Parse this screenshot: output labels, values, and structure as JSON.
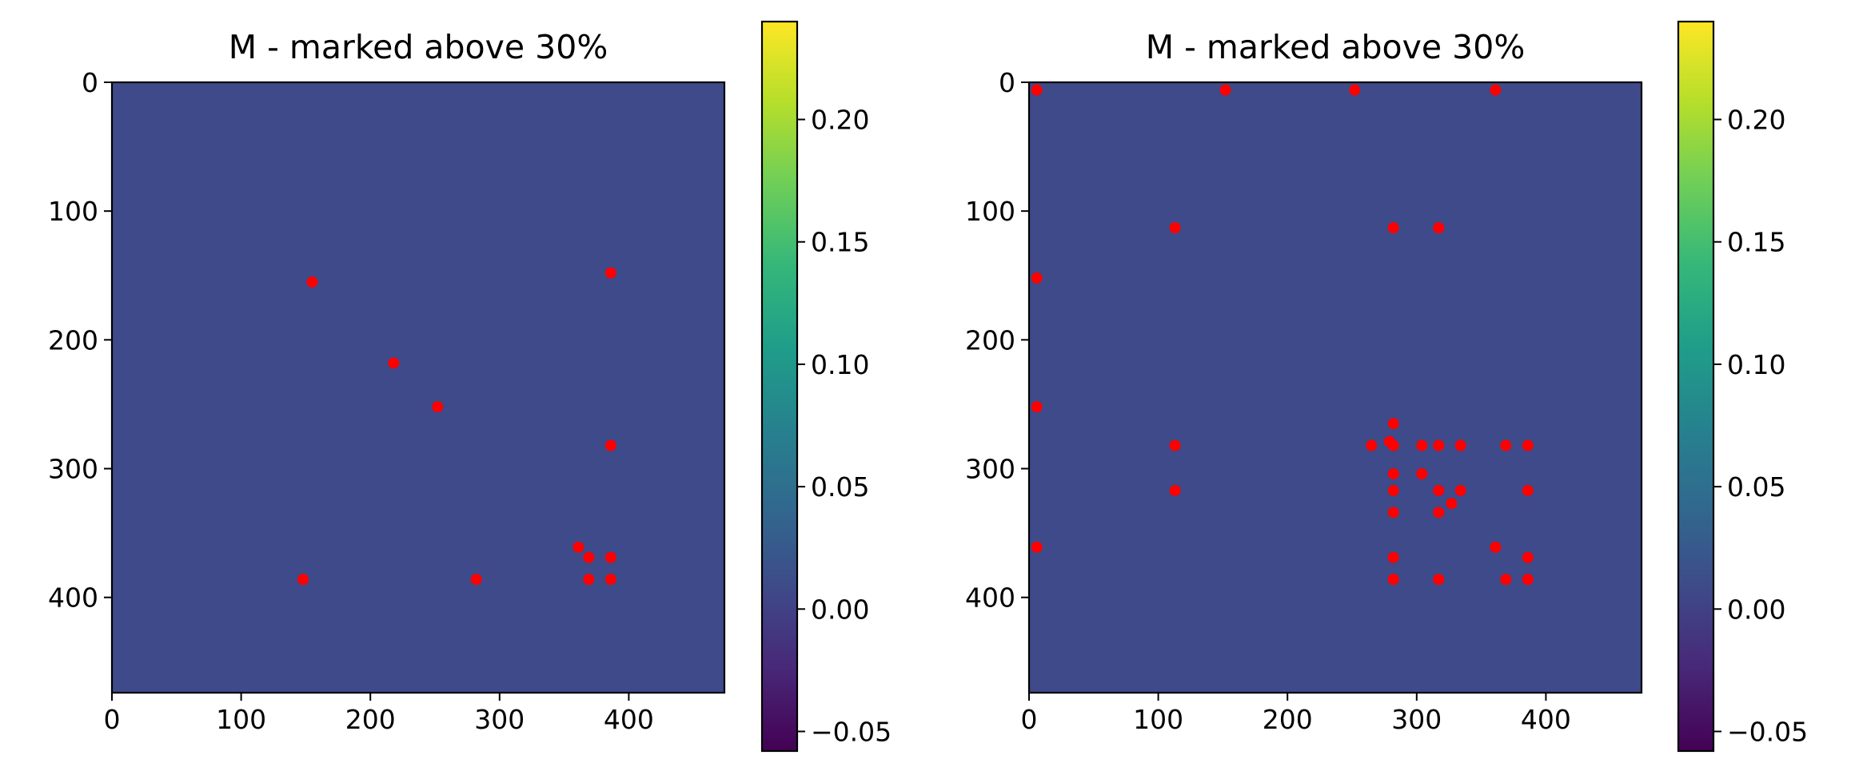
{
  "colors": {
    "background_value": "#3e4a89",
    "marker": "#ff0000",
    "axis": "#000000",
    "colormap": "viridis",
    "colormap_stops": [
      "#440154",
      "#482777",
      "#3e4a89",
      "#31688e",
      "#26828e",
      "#1f9e89",
      "#35b779",
      "#6ece58",
      "#b5de2b",
      "#fde725"
    ]
  },
  "chart_data": [
    {
      "type": "heatmap",
      "title": "M - marked above 30%",
      "xlim": [
        0,
        474
      ],
      "ylim": [
        474,
        0
      ],
      "x_ticks": [
        0,
        100,
        200,
        300,
        400
      ],
      "y_ticks": [
        0,
        100,
        200,
        300,
        400
      ],
      "x_tick_labels": [
        "0",
        "100",
        "200",
        "300",
        "400"
      ],
      "y_tick_labels": [
        "0",
        "100",
        "200",
        "300",
        "400"
      ],
      "y_inverted": true,
      "fill_value": 0.0,
      "colorbar": {
        "range": [
          -0.058,
          0.24
        ],
        "ticks": [
          -0.05,
          0.0,
          0.05,
          0.1,
          0.15,
          0.2
        ],
        "tick_labels": [
          "−0.05",
          "0.00",
          "0.05",
          "0.10",
          "0.15",
          "0.20"
        ]
      },
      "marked_points": [
        {
          "x": 155,
          "y": 155
        },
        {
          "x": 386,
          "y": 148
        },
        {
          "x": 218,
          "y": 218
        },
        {
          "x": 252,
          "y": 252
        },
        {
          "x": 386,
          "y": 282
        },
        {
          "x": 361,
          "y": 361
        },
        {
          "x": 369,
          "y": 369
        },
        {
          "x": 386,
          "y": 369
        },
        {
          "x": 148,
          "y": 386
        },
        {
          "x": 282,
          "y": 386
        },
        {
          "x": 369,
          "y": 386
        },
        {
          "x": 386,
          "y": 386
        }
      ]
    },
    {
      "type": "heatmap",
      "title": "M - marked above 30%",
      "xlim": [
        0,
        474
      ],
      "ylim": [
        474,
        0
      ],
      "x_ticks": [
        0,
        100,
        200,
        300,
        400
      ],
      "y_ticks": [
        0,
        100,
        200,
        300,
        400
      ],
      "x_tick_labels": [
        "0",
        "100",
        "200",
        "300",
        "400"
      ],
      "y_tick_labels": [
        "0",
        "100",
        "200",
        "300",
        "400"
      ],
      "y_inverted": true,
      "fill_value": 0.0,
      "colorbar": {
        "range": [
          -0.058,
          0.24
        ],
        "ticks": [
          -0.05,
          0.0,
          0.05,
          0.1,
          0.15,
          0.2
        ],
        "tick_labels": [
          "−0.05",
          "0.00",
          "0.05",
          "0.10",
          "0.15",
          "0.20"
        ]
      },
      "marked_points": [
        {
          "x": 6,
          "y": 6
        },
        {
          "x": 152,
          "y": 6
        },
        {
          "x": 252,
          "y": 6
        },
        {
          "x": 361,
          "y": 6
        },
        {
          "x": 113,
          "y": 113
        },
        {
          "x": 282,
          "y": 113
        },
        {
          "x": 317,
          "y": 113
        },
        {
          "x": 6,
          "y": 152
        },
        {
          "x": 6,
          "y": 252
        },
        {
          "x": 282,
          "y": 265
        },
        {
          "x": 279,
          "y": 279
        },
        {
          "x": 113,
          "y": 282
        },
        {
          "x": 265,
          "y": 282
        },
        {
          "x": 282,
          "y": 282
        },
        {
          "x": 304,
          "y": 282
        },
        {
          "x": 317,
          "y": 282
        },
        {
          "x": 334,
          "y": 282
        },
        {
          "x": 369,
          "y": 282
        },
        {
          "x": 386,
          "y": 282
        },
        {
          "x": 282,
          "y": 304
        },
        {
          "x": 304,
          "y": 304
        },
        {
          "x": 113,
          "y": 317
        },
        {
          "x": 282,
          "y": 317
        },
        {
          "x": 317,
          "y": 317
        },
        {
          "x": 334,
          "y": 317
        },
        {
          "x": 386,
          "y": 317
        },
        {
          "x": 327,
          "y": 327
        },
        {
          "x": 282,
          "y": 334
        },
        {
          "x": 317,
          "y": 334
        },
        {
          "x": 6,
          "y": 361
        },
        {
          "x": 361,
          "y": 361
        },
        {
          "x": 282,
          "y": 369
        },
        {
          "x": 386,
          "y": 369
        },
        {
          "x": 282,
          "y": 386
        },
        {
          "x": 317,
          "y": 386
        },
        {
          "x": 369,
          "y": 386
        },
        {
          "x": 386,
          "y": 386
        }
      ]
    }
  ]
}
